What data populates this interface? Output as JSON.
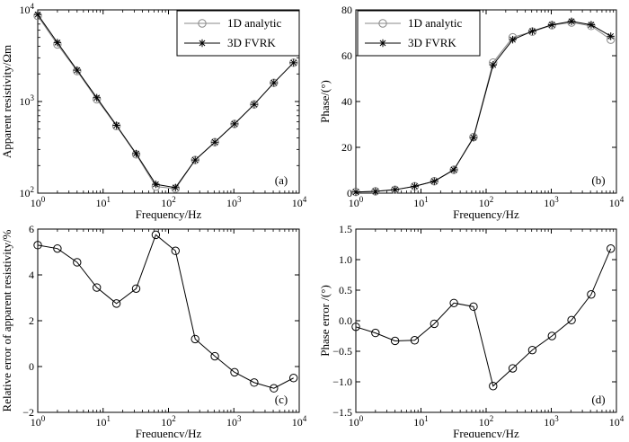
{
  "chart_data": [
    {
      "type": "line",
      "panel_label": "(a)",
      "xlabel": "Frequency/Hz",
      "ylabel": "Apparent resistivity/Ωm",
      "xscale": "log",
      "yscale": "log",
      "xlim": [
        1,
        10000
      ],
      "ylim": [
        100,
        10000
      ],
      "xticks": [
        1,
        10,
        100,
        1000,
        10000
      ],
      "xtick_labels": [
        [
          "10",
          "0"
        ],
        [
          "10",
          "1"
        ],
        [
          "10",
          "2"
        ],
        [
          "10",
          "3"
        ],
        [
          "10",
          "4"
        ]
      ],
      "yticks": [
        100,
        1000,
        10000
      ],
      "ytick_labels": [
        [
          "10",
          "2"
        ],
        [
          "10",
          "3"
        ],
        [
          "10",
          "4"
        ]
      ],
      "legend": {
        "position": "top-right",
        "entries": [
          "1D analytic",
          "3D FVRK"
        ]
      },
      "x": [
        1,
        2,
        4,
        8,
        16,
        32,
        64,
        128,
        256,
        512,
        1024,
        2048,
        4096,
        8192
      ],
      "series": [
        {
          "name": "1D analytic",
          "color": "#888888",
          "marker": "circle",
          "values": [
            8600,
            4200,
            2150,
            1060,
            540,
            265,
            118,
            112,
            230,
            360,
            570,
            930,
            1600,
            2650
          ]
        },
        {
          "name": "3D FVRK",
          "color": "#000000",
          "marker": "asterisk",
          "values": [
            8900,
            4400,
            2200,
            1100,
            550,
            270,
            125,
            115,
            230,
            360,
            570,
            930,
            1600,
            2650
          ]
        }
      ]
    },
    {
      "type": "line",
      "panel_label": "(b)",
      "xlabel": "Frequency/Hz",
      "ylabel": "Phase/(°)",
      "xscale": "log",
      "yscale": "linear",
      "xlim": [
        1,
        10000
      ],
      "ylim": [
        0,
        80
      ],
      "xticks": [
        1,
        10,
        100,
        1000,
        10000
      ],
      "xtick_labels": [
        [
          "10",
          "0"
        ],
        [
          "10",
          "1"
        ],
        [
          "10",
          "2"
        ],
        [
          "10",
          "3"
        ],
        [
          "10",
          "4"
        ]
      ],
      "yticks": [
        0,
        20,
        40,
        60,
        80
      ],
      "ytick_labels": [
        "0",
        "20",
        "40",
        "60",
        "80"
      ],
      "legend": {
        "position": "top-left",
        "entries": [
          "1D analytic",
          "3D FVRK"
        ]
      },
      "x": [
        1,
        2,
        4,
        8,
        16,
        32,
        64,
        128,
        256,
        512,
        1024,
        2048,
        4096,
        8192
      ],
      "series": [
        {
          "name": "1D analytic",
          "color": "#888888",
          "marker": "circle",
          "values": [
            0.5,
            0.8,
            1.5,
            3.0,
            5.2,
            10.2,
            24.5,
            57,
            68,
            70.5,
            73.3,
            74.5,
            73,
            67
          ]
        },
        {
          "name": "3D FVRK",
          "color": "#000000",
          "marker": "asterisk",
          "values": [
            0.5,
            0.8,
            1.5,
            3.0,
            5.2,
            10.2,
            24.2,
            56,
            67,
            70.7,
            73.5,
            75,
            73.5,
            68.5
          ]
        }
      ]
    },
    {
      "type": "line",
      "panel_label": "(c)",
      "xlabel": "Frequency/Hz",
      "ylabel": "Relative error of apparent resistivity/%",
      "xscale": "log",
      "yscale": "linear",
      "xlim": [
        1,
        10000
      ],
      "ylim": [
        -2,
        6
      ],
      "xticks": [
        1,
        10,
        100,
        1000,
        10000
      ],
      "xtick_labels": [
        [
          "10",
          "0"
        ],
        [
          "10",
          "1"
        ],
        [
          "10",
          "2"
        ],
        [
          "10",
          "3"
        ],
        [
          "10",
          "4"
        ]
      ],
      "yticks": [
        -2,
        0,
        2,
        4,
        6
      ],
      "ytick_labels": [
        "−2",
        "0",
        "2",
        "4",
        "6"
      ],
      "x": [
        1,
        2,
        4,
        8,
        16,
        32,
        64,
        128,
        256,
        512,
        1024,
        2048,
        4096,
        8192
      ],
      "series": [
        {
          "color": "#000000",
          "marker": "circle",
          "values": [
            5.3,
            5.15,
            4.55,
            3.45,
            2.75,
            3.4,
            5.75,
            5.05,
            1.2,
            0.45,
            -0.25,
            -0.7,
            -0.95,
            -0.5
          ]
        }
      ]
    },
    {
      "type": "line",
      "panel_label": "(d)",
      "xlabel": "Frequency/Hz",
      "ylabel": "Phase error /(°)",
      "xscale": "log",
      "yscale": "linear",
      "xlim": [
        1,
        10000
      ],
      "ylim": [
        -1.5,
        1.5
      ],
      "xticks": [
        1,
        10,
        100,
        1000,
        10000
      ],
      "xtick_labels": [
        [
          "10",
          "0"
        ],
        [
          "10",
          "1"
        ],
        [
          "10",
          "2"
        ],
        [
          "10",
          "3"
        ],
        [
          "10",
          "4"
        ]
      ],
      "yticks": [
        -1.5,
        -1.0,
        -0.5,
        0.0,
        0.5,
        1.0,
        1.5
      ],
      "ytick_labels": [
        "−1.5",
        "−1.0",
        "−0.5",
        "0.0",
        "0.5",
        "1.0",
        "1.5"
      ],
      "x": [
        1,
        2,
        4,
        8,
        16,
        32,
        64,
        128,
        256,
        512,
        1024,
        2048,
        4096,
        8192
      ],
      "series": [
        {
          "color": "#000000",
          "marker": "circle",
          "values": [
            -0.1,
            -0.2,
            -0.33,
            -0.32,
            -0.05,
            0.29,
            0.23,
            -1.07,
            -0.78,
            -0.48,
            -0.25,
            0.01,
            0.43,
            1.18
          ]
        }
      ]
    }
  ]
}
